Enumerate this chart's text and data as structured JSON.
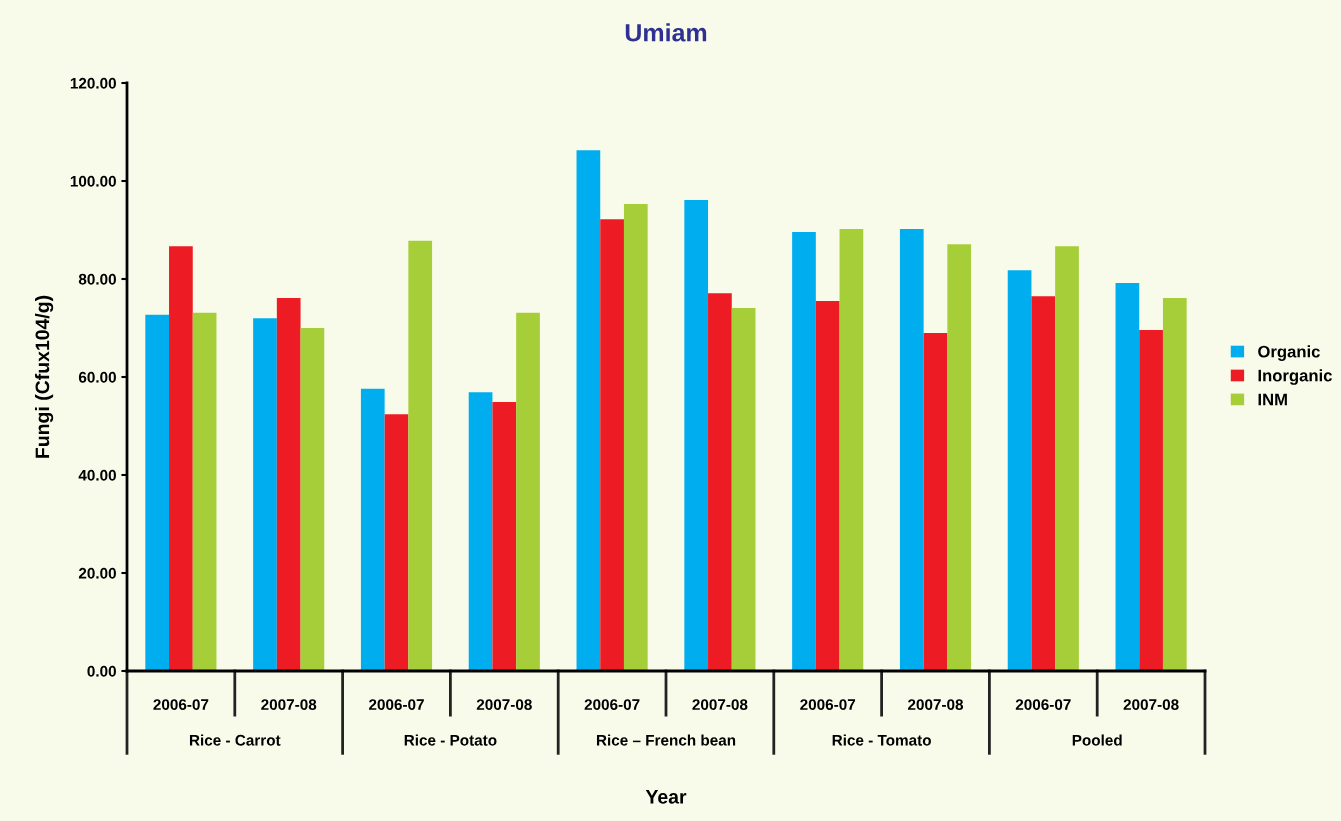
{
  "chart_data": {
    "type": "bar",
    "title": "Umiam",
    "xlabel": "Year",
    "ylabel": "Fungi (Cfux104/g)",
    "categories": [
      "2006-07",
      "2007-08",
      "2006-07",
      "2007-08",
      "2006-07",
      "2007-08",
      "2006-07",
      "2007-08",
      "2006-07",
      "2007-08"
    ],
    "annotations": [
      "Rice - Carrot",
      "Rice - Potato",
      "Rice – French bean",
      "Rice - Tomato",
      "Pooled"
    ],
    "series": [
      {
        "name": "Organic",
        "color": "#00aeef",
        "values": [
          72.7,
          72.0,
          57.6,
          56.9,
          106.3,
          96.1,
          89.6,
          90.2,
          81.8,
          79.2
        ]
      },
      {
        "name": "Inorganic",
        "color": "#ed1c24",
        "values": [
          86.7,
          76.1,
          52.4,
          54.9,
          92.2,
          77.1,
          75.5,
          69.0,
          76.5,
          69.6
        ]
      },
      {
        "name": "INM",
        "color": "#a6ce39",
        "values": [
          73.1,
          70.0,
          87.8,
          73.1,
          95.3,
          74.1,
          90.2,
          87.1,
          86.7,
          76.1
        ]
      }
    ],
    "ylim": [
      0,
      120
    ],
    "yticks": [
      {
        "value": 0,
        "label": "0.00"
      },
      {
        "value": 20,
        "label": "20.00"
      },
      {
        "value": 40,
        "label": "40.00"
      },
      {
        "value": 60,
        "label": "60.00"
      },
      {
        "value": 80,
        "label": "80.00"
      },
      {
        "value": 100,
        "label": "100.00"
      },
      {
        "value": 120,
        "label": "120.00"
      }
    ],
    "legend": "right",
    "grid": false
  }
}
